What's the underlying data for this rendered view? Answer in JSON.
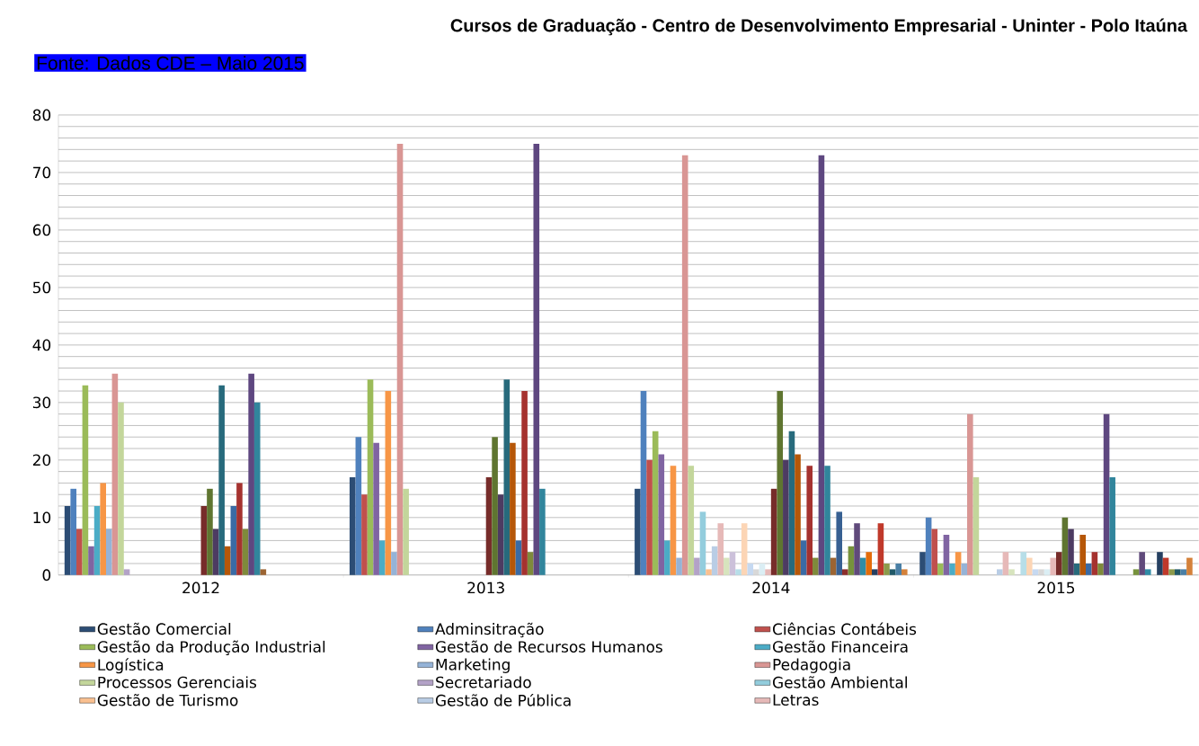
{
  "chart_data": {
    "type": "bar",
    "title": "Cursos de Graduação - Centro de Desenvolvimento Empresarial - Uninter - Polo Itaúna",
    "annotations": [
      "Fonte: Dados CDE – Maio 2015"
    ],
    "categories": [
      "2012",
      "2013",
      "2014",
      "2015"
    ],
    "ylim": [
      0,
      80
    ],
    "yticks": [
      0,
      {
        "value": 2,
        "label": null
      },
      {
        "value": 4,
        "label": null
      },
      {
        "value": 6,
        "label": null
      },
      {
        "value": 8,
        "label": null
      },
      10,
      {
        "value": 12,
        "label": null
      },
      {
        "value": 14,
        "label": null
      },
      {
        "value": 16,
        "label": null
      },
      {
        "value": 18,
        "label": null
      },
      20,
      {
        "value": 22,
        "label": null
      },
      {
        "value": 24,
        "label": null
      },
      {
        "value": 26,
        "label": null
      },
      {
        "value": 28,
        "label": null
      },
      30,
      {
        "value": 32,
        "label": null
      },
      {
        "value": 34,
        "label": null
      },
      {
        "value": 36,
        "label": null
      },
      {
        "value": 38,
        "label": null
      },
      40,
      {
        "value": 42,
        "label": null
      },
      {
        "value": 44,
        "label": null
      },
      {
        "value": 46,
        "label": null
      },
      {
        "value": 48,
        "label": null
      },
      50,
      {
        "value": 52,
        "label": null
      },
      {
        "value": 54,
        "label": null
      },
      {
        "value": 56,
        "label": null
      },
      {
        "value": 58,
        "label": null
      },
      60,
      {
        "value": 62,
        "label": null
      },
      {
        "value": 64,
        "label": null
      },
      {
        "value": 66,
        "label": null
      },
      {
        "value": 68,
        "label": null
      },
      70,
      {
        "value": 72,
        "label": null
      },
      {
        "value": 74,
        "label": null
      },
      {
        "value": 76,
        "label": null
      },
      {
        "value": 78,
        "label": null
      },
      80
    ],
    "grid": "y",
    "legend": "bottom",
    "series": [
      {
        "name": "Gestão Comercial",
        "color": "#2c4d75",
        "values": [
          12,
          17,
          15,
          4
        ]
      },
      {
        "name": "Adminsitração",
        "color": "#4f81bd",
        "values": [
          15,
          24,
          32,
          10
        ]
      },
      {
        "name": "Ciências Contábeis",
        "color": "#c0504d",
        "values": [
          8,
          14,
          20,
          8
        ]
      },
      {
        "name": "Gestão da Produção Industrial",
        "color": "#9bbb59",
        "values": [
          33,
          34,
          25,
          2
        ]
      },
      {
        "name": "Gestão de Recursos Humanos",
        "color": "#8064a2",
        "values": [
          5,
          23,
          21,
          7
        ]
      },
      {
        "name": "Gestão Financeira",
        "color": "#4bacc6",
        "values": [
          12,
          6,
          6,
          2
        ]
      },
      {
        "name": "Logística",
        "color": "#f79646",
        "values": [
          16,
          32,
          19,
          4
        ]
      },
      {
        "name": "Marketing",
        "color": "#95b3d7",
        "values": [
          8,
          4,
          3,
          2
        ]
      },
      {
        "name": "Pedagogia",
        "color": "#d99694",
        "values": [
          35,
          75,
          73,
          28
        ]
      },
      {
        "name": "Processos Gerenciais",
        "color": "#c3d69b",
        "values": [
          30,
          15,
          19,
          17
        ]
      },
      {
        "name": "Secretariado",
        "color": "#b3a2c7",
        "values": [
          1,
          0,
          3,
          0
        ]
      },
      {
        "name": "Gestão Ambiental",
        "color": "#93cddd",
        "values": [
          0,
          0,
          11,
          0
        ]
      },
      {
        "name": "Gestão de Turismo",
        "color": "#fac090",
        "values": [
          0,
          0,
          1,
          0
        ]
      },
      {
        "name": "Gestão de Pública",
        "color": "#b9cde5",
        "values": [
          0,
          0,
          5,
          1
        ]
      },
      {
        "name": "Letras",
        "color": "#e6b9b8",
        "values": [
          0,
          0,
          9,
          4
        ]
      },
      {
        "color": "#d7e4bd",
        "values": [
          0,
          0,
          3,
          1
        ]
      },
      {
        "color": "#ccc1da",
        "values": [
          0,
          0,
          4,
          0
        ]
      },
      {
        "color": "#b7dee8",
        "values": [
          0,
          0,
          1,
          4
        ]
      },
      {
        "color": "#fcd5b5",
        "values": [
          0,
          0,
          9,
          3
        ]
      },
      {
        "color": "#c6d9f1",
        "values": [
          0,
          0,
          2,
          1
        ]
      },
      {
        "color": "#d8d8d8",
        "values": [
          0,
          0,
          1,
          1
        ]
      },
      {
        "color": "#dbeef4",
        "values": [
          0,
          0,
          2,
          1
        ]
      },
      {
        "color": "#e6b9b8",
        "values": [
          0,
          0,
          1,
          3
        ]
      },
      {
        "color": "#772c2a",
        "values": [
          12,
          17,
          15,
          4
        ]
      },
      {
        "color": "#5f7530",
        "values": [
          15,
          24,
          32,
          10
        ]
      },
      {
        "color": "#4d3b62",
        "values": [
          8,
          14,
          20,
          8
        ]
      },
      {
        "color": "#276a7c",
        "values": [
          33,
          34,
          25,
          2
        ]
      },
      {
        "color": "#b65708",
        "values": [
          5,
          23,
          21,
          7
        ]
      },
      {
        "color": "#3a6ba5",
        "values": [
          12,
          6,
          6,
          2
        ]
      },
      {
        "color": "#a5322f",
        "values": [
          16,
          32,
          19,
          4
        ]
      },
      {
        "color": "#7f8a3b",
        "values": [
          8,
          4,
          3,
          2
        ]
      },
      {
        "color": "#5e4780",
        "values": [
          35,
          75,
          73,
          28
        ]
      },
      {
        "color": "#31859c",
        "values": [
          30,
          15,
          19,
          17
        ]
      },
      {
        "color": "#9c6432",
        "values": [
          1,
          0,
          3,
          0
        ]
      },
      {
        "color": "#376092",
        "values": [
          0,
          0,
          11,
          0
        ]
      },
      {
        "color": "#8b2e2c",
        "values": [
          0,
          0,
          1,
          0
        ]
      },
      {
        "color": "#76923c",
        "values": [
          0,
          0,
          5,
          1
        ]
      },
      {
        "color": "#604a7b",
        "values": [
          0,
          0,
          9,
          4
        ]
      },
      {
        "color": "#2f8ca6",
        "values": [
          0,
          0,
          3,
          1
        ]
      },
      {
        "color": "#e46c0a",
        "values": [
          0,
          0,
          4,
          0
        ]
      },
      {
        "color": "#254061",
        "values": [
          0,
          0,
          1,
          4
        ]
      },
      {
        "color": "#c0392b",
        "values": [
          0,
          0,
          9,
          3
        ]
      },
      {
        "color": "#8c9a4a",
        "values": [
          0,
          0,
          2,
          1
        ]
      },
      {
        "color": "#215968",
        "values": [
          0,
          0,
          1,
          1
        ]
      },
      {
        "color": "#4a7fa5",
        "values": [
          0,
          0,
          2,
          1
        ]
      },
      {
        "color": "#d4813a",
        "values": [
          0,
          0,
          1,
          3
        ]
      }
    ]
  }
}
